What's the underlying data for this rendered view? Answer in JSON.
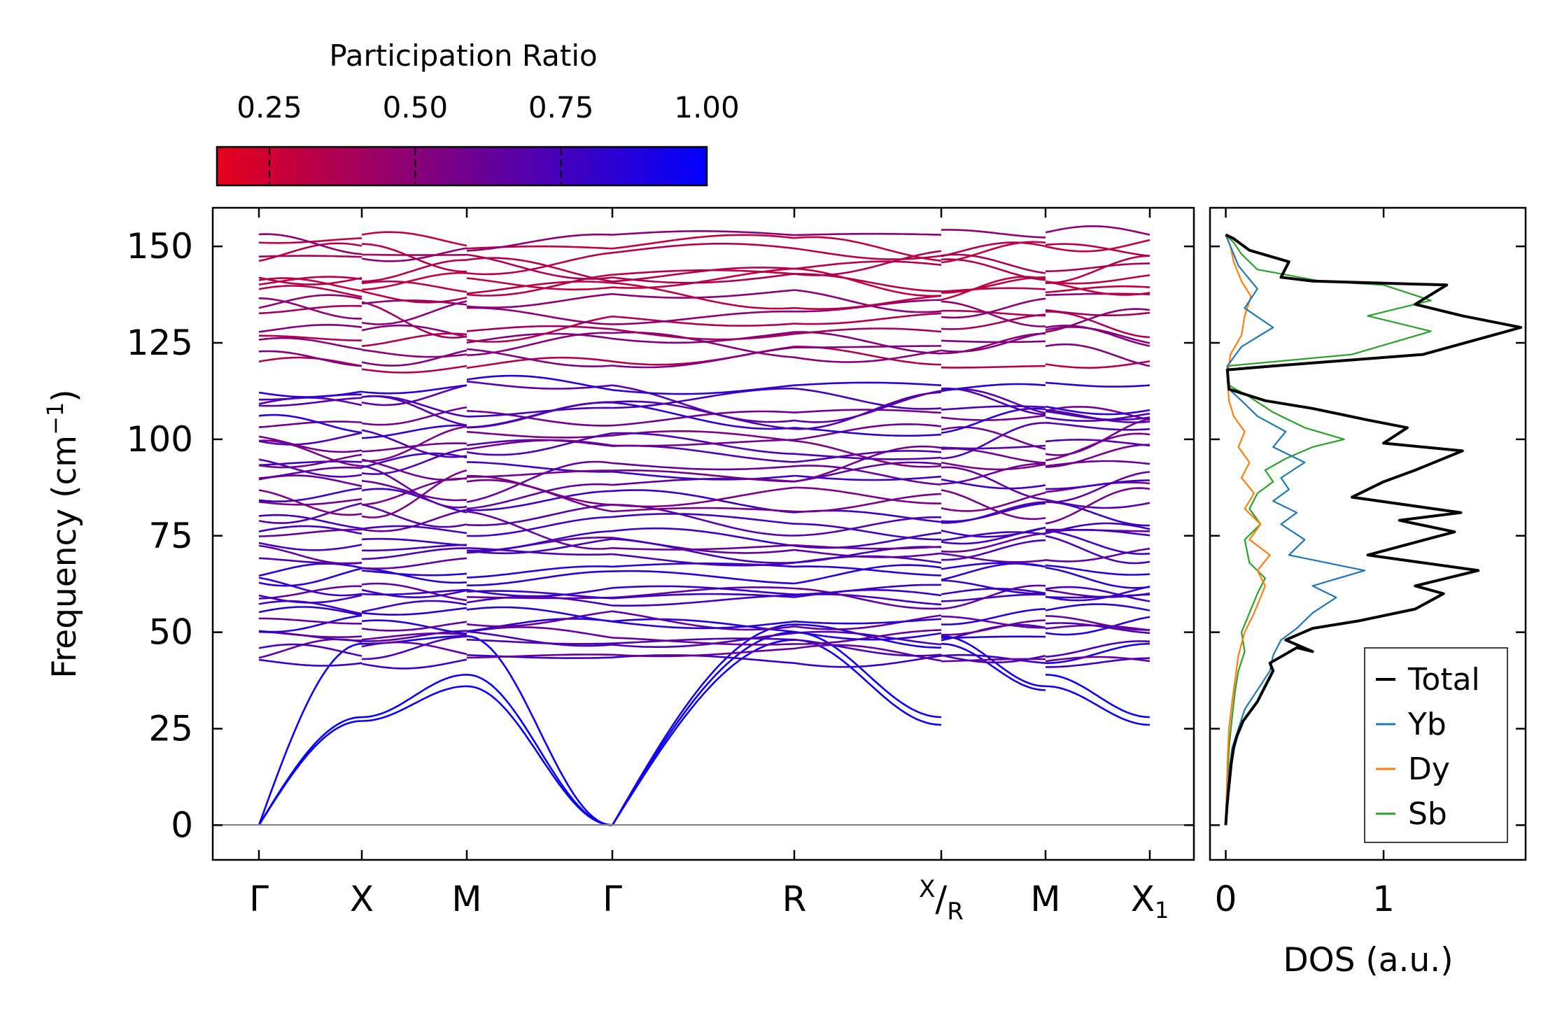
{
  "chart_data": [
    {
      "type": "line",
      "name": "phonon-band-structure",
      "ylabel_main": "Frequency (cm",
      "ylabel_sup": "−1",
      "ylabel_close": ")",
      "ylim": [
        -9,
        160
      ],
      "yticks": [
        0,
        25,
        50,
        75,
        100,
        125,
        150
      ],
      "grid": false,
      "colorbar": {
        "title": "Participation Ratio",
        "range": [
          0.16,
          1.0
        ],
        "ticks": [
          0.25,
          0.5,
          0.75,
          1.0
        ],
        "tick_labels": [
          "0.25",
          "0.50",
          "0.75",
          "1.00"
        ],
        "colors": [
          "#e6001a",
          "#0000ff"
        ]
      },
      "kpath": {
        "positions": [
          0,
          1,
          2,
          3.4,
          5.15,
          6.55,
          7.55,
          8.55
        ],
        "labels": [
          "Γ",
          "X",
          "M",
          "Γ",
          "R",
          "X/R",
          "M",
          "X1"
        ],
        "breaks": [
          1,
          2,
          6.55,
          7.55
        ],
        "sep_label": {
          "top": "X",
          "bottom": "R"
        },
        "x1_label": {
          "main": "X",
          "sub": "1"
        }
      },
      "bands": {
        "description": "Representative phonon dispersion branches (cm^-1) at high-symmetry points; colour = participation ratio",
        "at_points": {
          "Γ": [
            0,
            0,
            0,
            43,
            45,
            50,
            53,
            55,
            61,
            74,
            80,
            81,
            92,
            93,
            100,
            101,
            105,
            110,
            114,
            120,
            125,
            129,
            130,
            136,
            141,
            152
          ],
          "X": [
            27,
            28,
            47,
            52,
            56,
            59,
            64,
            66,
            70,
            76,
            84,
            88,
            94,
            98,
            101,
            106,
            110,
            121,
            125,
            128,
            131,
            135,
            140,
            144,
            148
          ],
          "R": [
            48,
            50,
            52,
            55,
            57,
            62,
            66,
            74,
            76,
            78,
            82,
            85,
            88,
            92,
            96,
            99,
            101,
            104,
            121,
            125,
            128,
            130,
            135,
            140,
            143
          ]
        }
      }
    },
    {
      "type": "line",
      "name": "density-of-states",
      "xlabel": "DOS (a.u.)",
      "xlim": [
        -0.1,
        1.9
      ],
      "xticks": [
        0,
        1
      ],
      "xtick_labels": [
        "0",
        "1"
      ],
      "ylim": [
        -9,
        160
      ],
      "legend_position": "lower-right",
      "series": [
        {
          "name": "Total",
          "color": "#000000",
          "points": [
            [
              0,
              0
            ],
            [
              0.003,
              2
            ],
            [
              0.008,
              5
            ],
            [
              0.015,
              8
            ],
            [
              0.025,
              12
            ],
            [
              0.035,
              16
            ],
            [
              0.05,
              20
            ],
            [
              0.07,
              23
            ],
            [
              0.11,
              27
            ],
            [
              0.2,
              32
            ],
            [
              0.25,
              36
            ],
            [
              0.3,
              40
            ],
            [
              0.28,
              42
            ],
            [
              0.45,
              46
            ],
            [
              0.55,
              45
            ],
            [
              0.38,
              48
            ],
            [
              0.55,
              51
            ],
            [
              0.85,
              53
            ],
            [
              1.2,
              56
            ],
            [
              1.38,
              60
            ],
            [
              1.2,
              62
            ],
            [
              1.6,
              66
            ],
            [
              0.9,
              70
            ],
            [
              1.45,
              76
            ],
            [
              1.1,
              79
            ],
            [
              1.49,
              81
            ],
            [
              0.8,
              85
            ],
            [
              1.0,
              89
            ],
            [
              1.2,
              92
            ],
            [
              1.5,
              97
            ],
            [
              1.0,
              99
            ],
            [
              1.15,
              103
            ],
            [
              0.9,
              105
            ],
            [
              0.55,
              108
            ],
            [
              0.25,
              110
            ],
            [
              0.02,
              113
            ],
            [
              0.01,
              118
            ],
            [
              0.3,
              119
            ],
            [
              1.25,
              122
            ],
            [
              1.87,
              129
            ],
            [
              1.5,
              132
            ],
            [
              1.2,
              135
            ],
            [
              1.4,
              140
            ],
            [
              0.55,
              141
            ],
            [
              0.35,
              142
            ],
            [
              0.4,
              146
            ],
            [
              0.15,
              149
            ],
            [
              0.05,
              152
            ],
            [
              0,
              153
            ]
          ]
        },
        {
          "name": "Yb",
          "color": "#1f77b4",
          "points": [
            [
              0,
              0
            ],
            [
              0.003,
              3
            ],
            [
              0.01,
              8
            ],
            [
              0.02,
              14
            ],
            [
              0.04,
              20
            ],
            [
              0.08,
              25
            ],
            [
              0.12,
              30
            ],
            [
              0.2,
              35
            ],
            [
              0.28,
              40
            ],
            [
              0.3,
              44
            ],
            [
              0.35,
              48
            ],
            [
              0.45,
              51
            ],
            [
              0.55,
              55
            ],
            [
              0.7,
              59
            ],
            [
              0.55,
              62
            ],
            [
              0.88,
              66
            ],
            [
              0.4,
              70
            ],
            [
              0.5,
              74
            ],
            [
              0.35,
              78
            ],
            [
              0.45,
              81
            ],
            [
              0.3,
              84
            ],
            [
              0.4,
              87
            ],
            [
              0.35,
              90
            ],
            [
              0.5,
              94
            ],
            [
              0.3,
              98
            ],
            [
              0.38,
              102
            ],
            [
              0.2,
              106
            ],
            [
              0.1,
              110
            ],
            [
              0.02,
              113
            ],
            [
              0.01,
              119
            ],
            [
              0.1,
              124
            ],
            [
              0.3,
              129
            ],
            [
              0.12,
              134
            ],
            [
              0.2,
              139
            ],
            [
              0.08,
              145
            ],
            [
              0.03,
              150
            ],
            [
              0,
              153
            ]
          ]
        },
        {
          "name": "Dy",
          "color": "#ff7f0e",
          "points": [
            [
              0,
              0
            ],
            [
              0.002,
              3
            ],
            [
              0.006,
              10
            ],
            [
              0.012,
              18
            ],
            [
              0.02,
              25
            ],
            [
              0.04,
              32
            ],
            [
              0.06,
              38
            ],
            [
              0.08,
              44
            ],
            [
              0.12,
              50
            ],
            [
              0.18,
              55
            ],
            [
              0.22,
              59
            ],
            [
              0.25,
              62
            ],
            [
              0.2,
              66
            ],
            [
              0.28,
              70
            ],
            [
              0.15,
              74
            ],
            [
              0.22,
              78
            ],
            [
              0.12,
              82
            ],
            [
              0.18,
              86
            ],
            [
              0.1,
              90
            ],
            [
              0.15,
              94
            ],
            [
              0.08,
              98
            ],
            [
              0.12,
              102
            ],
            [
              0.05,
              106
            ],
            [
              0.02,
              110
            ],
            [
              0.01,
              116
            ],
            [
              0.03,
              122
            ],
            [
              0.1,
              127
            ],
            [
              0.12,
              132
            ],
            [
              0.16,
              137
            ],
            [
              0.1,
              141
            ],
            [
              0.05,
              146
            ],
            [
              0.03,
              150
            ],
            [
              0,
              153
            ]
          ]
        },
        {
          "name": "Sb",
          "color": "#2ca02c",
          "points": [
            [
              0,
              0
            ],
            [
              0.002,
              4
            ],
            [
              0.01,
              12
            ],
            [
              0.02,
              20
            ],
            [
              0.04,
              28
            ],
            [
              0.06,
              35
            ],
            [
              0.08,
              40
            ],
            [
              0.12,
              45
            ],
            [
              0.1,
              50
            ],
            [
              0.15,
              55
            ],
            [
              0.2,
              60
            ],
            [
              0.25,
              64
            ],
            [
              0.15,
              68
            ],
            [
              0.12,
              74
            ],
            [
              0.22,
              78
            ],
            [
              0.15,
              82
            ],
            [
              0.2,
              86
            ],
            [
              0.3,
              89
            ],
            [
              0.25,
              92
            ],
            [
              0.38,
              95
            ],
            [
              0.55,
              98
            ],
            [
              0.75,
              100
            ],
            [
              0.5,
              103
            ],
            [
              0.3,
              107
            ],
            [
              0.15,
              111
            ],
            [
              0.02,
              114
            ],
            [
              0.01,
              119
            ],
            [
              0.8,
              122
            ],
            [
              1.3,
              128
            ],
            [
              0.9,
              132
            ],
            [
              1.3,
              136
            ],
            [
              1.0,
              140
            ],
            [
              0.6,
              141
            ],
            [
              0.2,
              144
            ],
            [
              0.1,
              148
            ],
            [
              0.05,
              151
            ],
            [
              0,
              153
            ]
          ]
        }
      ]
    }
  ]
}
